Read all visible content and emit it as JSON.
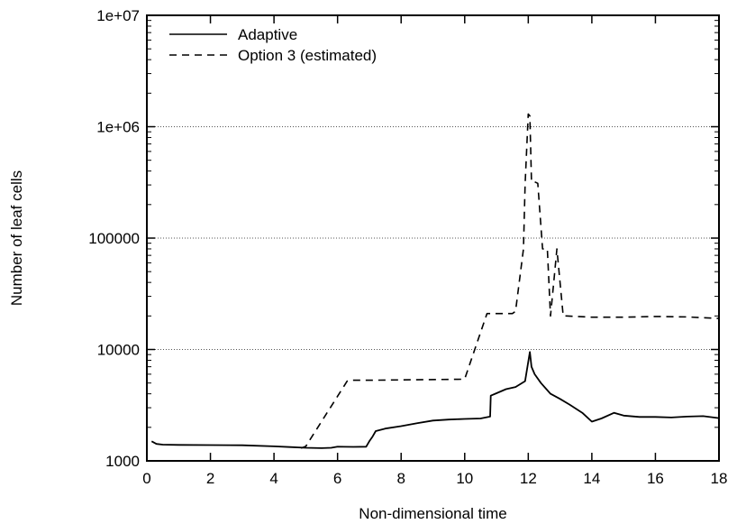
{
  "chart_data": {
    "type": "line",
    "xlabel": "Non-dimensional time",
    "ylabel": "Number of leaf cells",
    "xlim": [
      0,
      18
    ],
    "ylim": [
      1000,
      10000000
    ],
    "yscale": "log",
    "grid": "horizontal dotted at major y ticks",
    "legend_position": "top-left",
    "x_ticks": [
      0,
      2,
      4,
      6,
      8,
      10,
      12,
      14,
      16,
      18
    ],
    "x_tick_labels": [
      "0",
      "2",
      "4",
      "6",
      "8",
      "10",
      "12",
      "14",
      "16",
      "18"
    ],
    "y_ticks": [
      1000,
      10000,
      100000,
      1000000,
      10000000
    ],
    "y_tick_labels": [
      "1000",
      "10000",
      "100000",
      "1e+06",
      "1e+07"
    ],
    "series": [
      {
        "name": "Adaptive",
        "style": "solid",
        "color": "#000000",
        "x": [
          0.15,
          0.3,
          0.5,
          1,
          2,
          3,
          4,
          4.5,
          5,
          5.5,
          5.8,
          6,
          6.5,
          6.9,
          7,
          7.1,
          7.2,
          7.5,
          8,
          8.5,
          9,
          9.5,
          10,
          10.5,
          10.8,
          10.82,
          11,
          11.3,
          11.6,
          11.9,
          12.05,
          12.1,
          12.2,
          12.4,
          12.7,
          13,
          13.3,
          13.7,
          14,
          14.3,
          14.7,
          15,
          15.5,
          16,
          16.5,
          17,
          17.5,
          18
        ],
        "y": [
          1500,
          1420,
          1400,
          1390,
          1385,
          1380,
          1350,
          1330,
          1310,
          1300,
          1310,
          1340,
          1335,
          1340,
          1500,
          1650,
          1850,
          1950,
          2050,
          2180,
          2300,
          2350,
          2380,
          2400,
          2500,
          3850,
          4050,
          4400,
          4600,
          5200,
          9500,
          7000,
          6000,
          5000,
          4000,
          3600,
          3200,
          2700,
          2250,
          2400,
          2700,
          2550,
          2480,
          2480,
          2450,
          2500,
          2520,
          2420
        ]
      },
      {
        "name": "Option 3 (estimated)",
        "style": "dashed",
        "color": "#000000",
        "x": [
          4.85,
          5.0,
          6.3,
          6.4,
          7.0,
          9.9,
          10.0,
          10.7,
          10.8,
          11.5,
          11.6,
          11.85,
          11.9,
          12.0,
          12.05,
          12.1,
          12.2,
          12.3,
          12.45,
          12.5,
          12.6,
          12.7,
          12.8,
          12.9,
          13.0,
          13.1,
          13.2,
          14,
          15,
          16,
          17,
          18
        ],
        "y": [
          1300,
          1350,
          5200,
          5300,
          5300,
          5400,
          5450,
          21000,
          21000,
          21000,
          22000,
          80000,
          300000,
          1300000,
          1250000,
          320000,
          320000,
          310000,
          80000,
          80000,
          80000,
          20000,
          40000,
          80000,
          40000,
          20000,
          20000,
          19500,
          19500,
          19800,
          19600,
          19000
        ]
      }
    ]
  }
}
